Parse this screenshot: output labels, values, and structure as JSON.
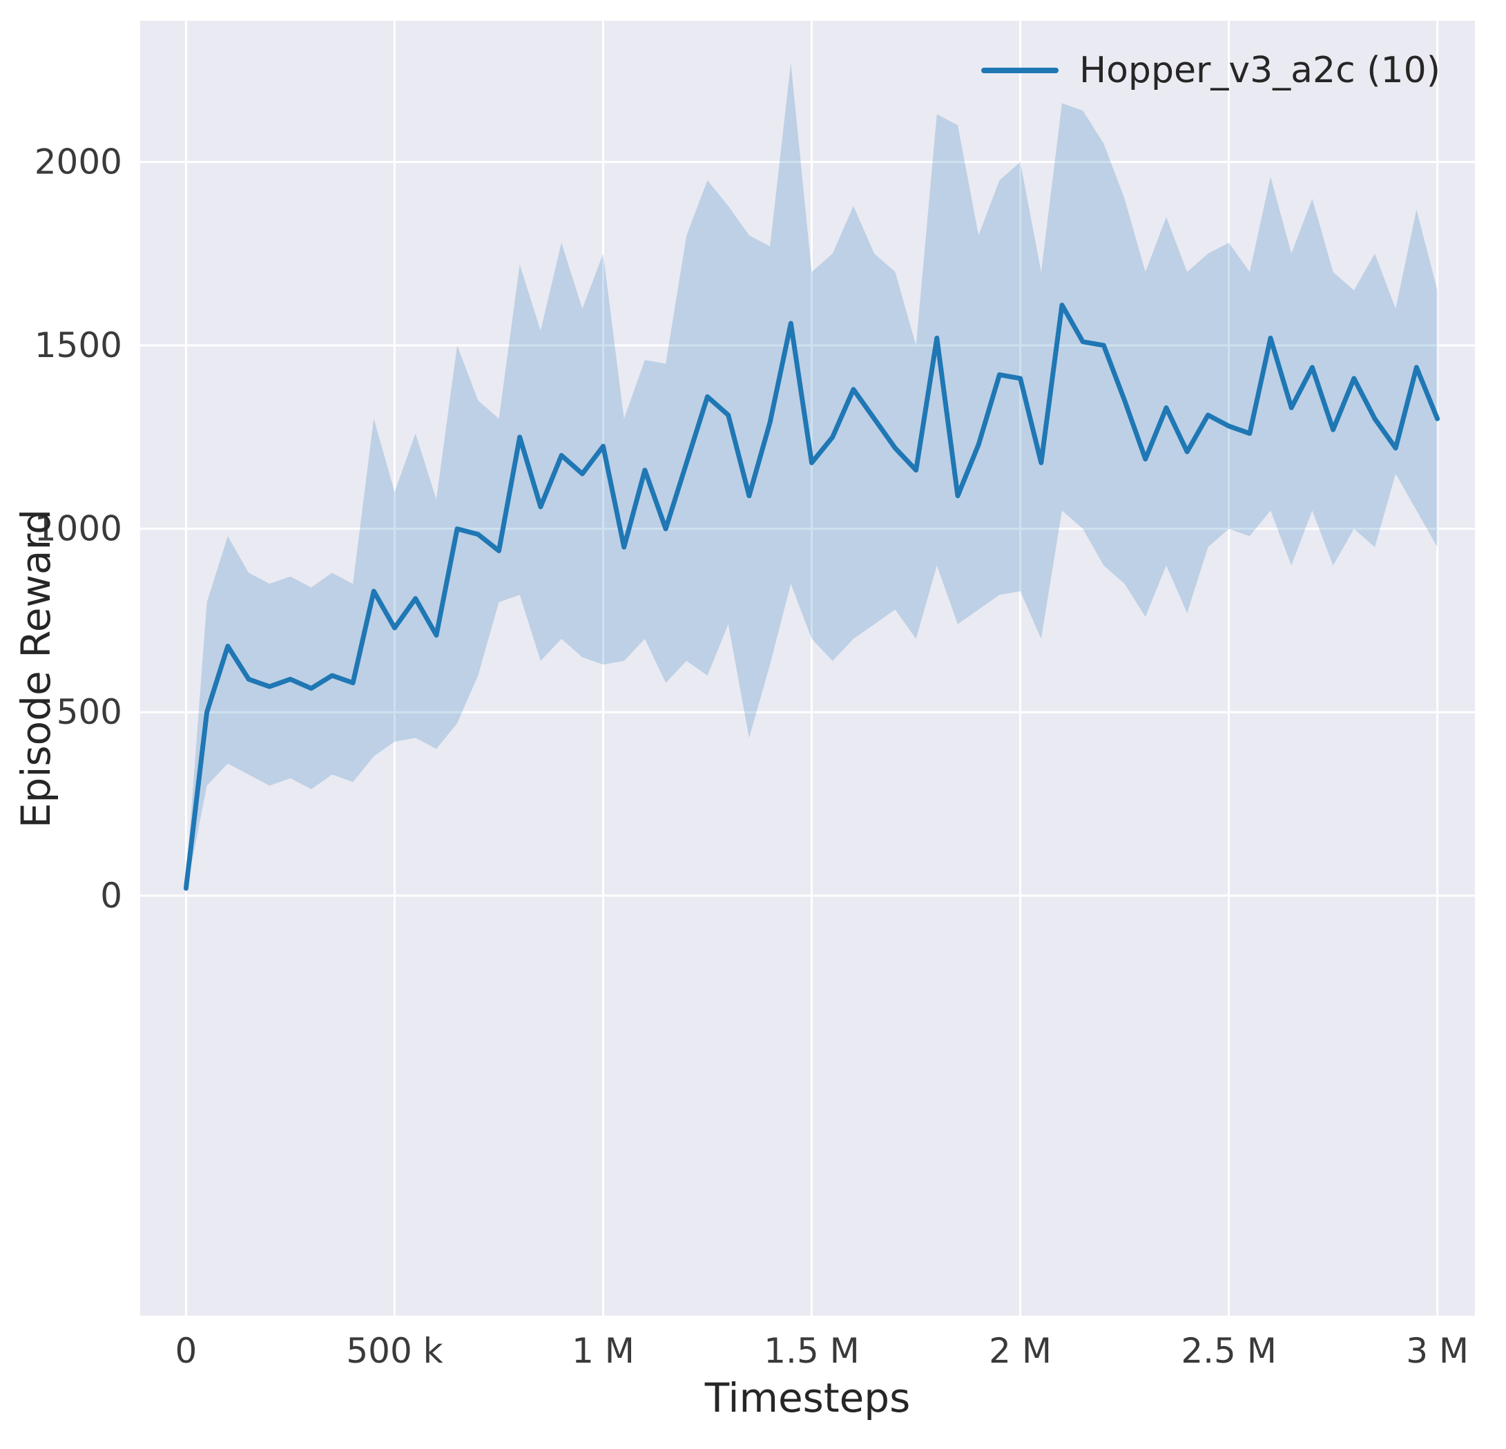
{
  "chart_data": {
    "type": "line",
    "title": "",
    "xlabel": "Timesteps",
    "ylabel": "Episode Reward",
    "grid": true,
    "plot_bg": "#eaeaf2",
    "grid_color": "#ffffff",
    "band_alpha": 0.22,
    "xlim": [
      -110000,
      3090000
    ],
    "ylim": [
      -1145,
      2385
    ],
    "xticks": {
      "values": [
        0,
        500000,
        1000000,
        1500000,
        2000000,
        2500000,
        3000000
      ],
      "labels": [
        "0",
        "500 k",
        "1 M",
        "1.5 M",
        "2 M",
        "2.5 M",
        "3 M"
      ]
    },
    "yticks": {
      "values": [
        0,
        500,
        1000,
        1500,
        2000
      ],
      "labels": [
        "0",
        "500",
        "1000",
        "1500",
        "2000"
      ]
    },
    "legend": {
      "position": "upper right",
      "entries": [
        {
          "label": "Hopper_v3_a2c (10)",
          "color": "#1f77b4"
        }
      ]
    },
    "x": [
      0,
      50000,
      100000,
      150000,
      200000,
      250000,
      300000,
      350000,
      400000,
      450000,
      500000,
      550000,
      600000,
      650000,
      700000,
      750000,
      800000,
      850000,
      900000,
      950000,
      1000000,
      1050000,
      1100000,
      1150000,
      1200000,
      1250000,
      1300000,
      1350000,
      1400000,
      1450000,
      1500000,
      1550000,
      1600000,
      1650000,
      1700000,
      1750000,
      1800000,
      1850000,
      1900000,
      1950000,
      2000000,
      2050000,
      2100000,
      2150000,
      2200000,
      2250000,
      2300000,
      2350000,
      2400000,
      2450000,
      2500000,
      2550000,
      2600000,
      2650000,
      2700000,
      2750000,
      2800000,
      2850000,
      2900000,
      2950000,
      3000000
    ],
    "series": [
      {
        "name": "Hopper_v3_a2c (10)",
        "color": "#1f77b4",
        "values": [
          20,
          500,
          680,
          590,
          570,
          590,
          565,
          600,
          580,
          830,
          730,
          810,
          710,
          1000,
          985,
          940,
          1250,
          1060,
          1200,
          1150,
          1225,
          950,
          1160,
          1000,
          1180,
          1360,
          1310,
          1090,
          1290,
          1560,
          1180,
          1250,
          1380,
          1300,
          1220,
          1160,
          1520,
          1090,
          1230,
          1420,
          1410,
          1180,
          1610,
          1510,
          1500,
          1350,
          1190,
          1330,
          1210,
          1310,
          1280,
          1260,
          1520,
          1330,
          1440,
          1270,
          1410,
          1300,
          1220,
          1440,
          1300
        ],
        "band_lower": [
          10,
          300,
          360,
          330,
          300,
          320,
          290,
          330,
          310,
          380,
          420,
          430,
          400,
          470,
          600,
          800,
          820,
          640,
          700,
          650,
          630,
          640,
          700,
          580,
          640,
          600,
          740,
          430,
          630,
          850,
          700,
          640,
          700,
          740,
          780,
          700,
          900,
          740,
          780,
          820,
          830,
          700,
          1050,
          1000,
          900,
          850,
          760,
          900,
          770,
          950,
          1000,
          980,
          1050,
          900,
          1050,
          900,
          1000,
          950,
          1150,
          1050,
          950
        ],
        "band_upper": [
          40,
          800,
          980,
          880,
          850,
          870,
          840,
          880,
          850,
          1300,
          1100,
          1260,
          1080,
          1500,
          1350,
          1300,
          1720,
          1540,
          1780,
          1600,
          1750,
          1300,
          1460,
          1450,
          1800,
          1950,
          1880,
          1800,
          1770,
          2270,
          1700,
          1750,
          1880,
          1750,
          1700,
          1500,
          2130,
          2100,
          1800,
          1950,
          2000,
          1700,
          2160,
          2140,
          2050,
          1900,
          1700,
          1850,
          1700,
          1750,
          1780,
          1700,
          1960,
          1750,
          1900,
          1700,
          1650,
          1750,
          1600,
          1870,
          1650
        ]
      }
    ]
  }
}
